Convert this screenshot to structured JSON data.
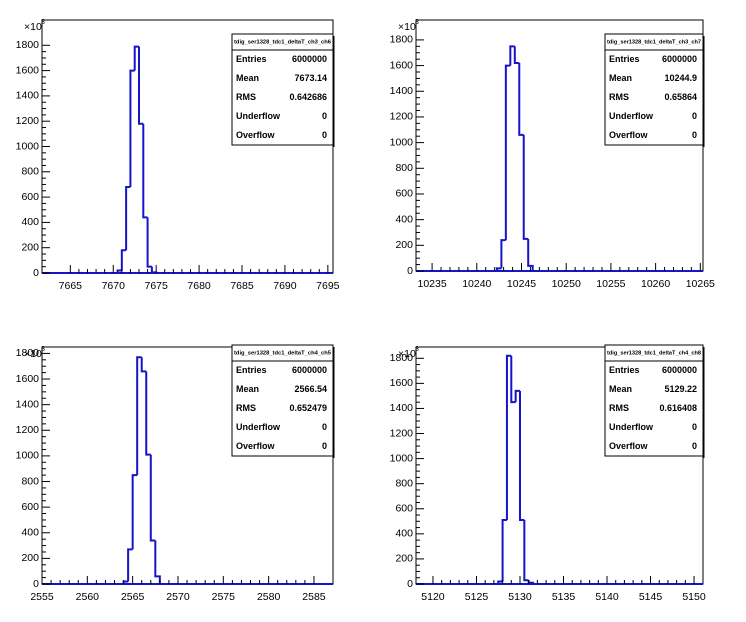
{
  "chart_data": [
    {
      "type": "histogram",
      "color": "#1414c8",
      "bins": [
        7670.5,
        7671,
        7671.5,
        7672,
        7672.5,
        7673,
        7673.5,
        7674,
        7674.5,
        7675
      ],
      "values": [
        20,
        180,
        680,
        1600,
        1790,
        1180,
        440,
        50,
        5
      ],
      "xlim": [
        7661.7,
        7695.6
      ],
      "ylim": [
        0,
        2000
      ],
      "xticks": [
        7665,
        7670,
        7675,
        7680,
        7685,
        7690,
        7695
      ],
      "yticks": [
        0,
        200,
        400,
        600,
        800,
        1000,
        1200,
        1400,
        1600,
        1800
      ],
      "y_multiplier": {
        "base": "×10",
        "exponent": "3"
      },
      "stats": {
        "title": "tdig_ser1328_tdc1_deltaT_ch3_ch6",
        "rows": [
          {
            "label": "Entries",
            "value": 6000000
          },
          {
            "label": "Mean",
            "value": 7673.14
          },
          {
            "label": "RMS",
            "value": 0.642686
          },
          {
            "label": "Underflow",
            "value": 0
          },
          {
            "label": "Overflow",
            "value": 0
          }
        ]
      }
    },
    {
      "type": "histogram",
      "color": "#1414c8",
      "bins": [
        10242.25,
        10242.75,
        10243.25,
        10243.75,
        10244.25,
        10244.75,
        10245.25,
        10245.75,
        10246.25
      ],
      "values": [
        20,
        240,
        1600,
        1750,
        1620,
        1060,
        250,
        40
      ],
      "xlim": [
        10233.2,
        10265.3
      ],
      "ylim": [
        0,
        1955
      ],
      "xticks": [
        10235,
        10240,
        10245,
        10250,
        10255,
        10260,
        10265
      ],
      "yticks": [
        0,
        200,
        400,
        600,
        800,
        1000,
        1200,
        1400,
        1600,
        1800
      ],
      "y_multiplier": {
        "base": "×10",
        "exponent": "3"
      },
      "stats": {
        "title": "tdig_ser1328_tdc1_deltaT_ch3_ch7",
        "rows": [
          {
            "label": "Entries",
            "value": 6000000
          },
          {
            "label": "Mean",
            "value": 10244.9
          },
          {
            "label": "RMS",
            "value": 0.65864
          },
          {
            "label": "Underflow",
            "value": 0
          },
          {
            "label": "Overflow",
            "value": 0
          }
        ]
      }
    },
    {
      "type": "histogram",
      "color": "#1414c8",
      "bins": [
        2564,
        2564.5,
        2565,
        2565.5,
        2566,
        2566.5,
        2567,
        2567.5,
        2568
      ],
      "values": [
        20,
        270,
        850,
        1770,
        1660,
        1010,
        340,
        60
      ],
      "xlim": [
        2555,
        2587.1
      ],
      "ylim": [
        0,
        1850
      ],
      "xticks": [
        2555,
        2560,
        2565,
        2570,
        2575,
        2580,
        2585
      ],
      "yticks": [
        0,
        200,
        400,
        600,
        800,
        1000,
        1200,
        1400,
        1600,
        1800
      ],
      "y_multiplier": {
        "base": "×10",
        "exponent": "3"
      },
      "stats": {
        "title": "tdig_ser1328_tdc1_deltaT_ch4_ch5",
        "rows": [
          {
            "label": "Entries",
            "value": 6000000
          },
          {
            "label": "Mean",
            "value": 2566.54
          },
          {
            "label": "RMS",
            "value": 0.652479
          },
          {
            "label": "Underflow",
            "value": 0
          },
          {
            "label": "Overflow",
            "value": 0
          }
        ]
      }
    },
    {
      "type": "histogram",
      "color": "#1414c8",
      "bins": [
        5127.5,
        5128,
        5128.5,
        5129,
        5129.5,
        5130,
        5130.5,
        5131,
        5131.5
      ],
      "values": [
        20,
        510,
        1820,
        1450,
        1540,
        510,
        30,
        10
      ],
      "xlim": [
        5118.05,
        5151.03
      ],
      "ylim": [
        0,
        1890
      ],
      "xticks": [
        5120,
        5125,
        5130,
        5135,
        5140,
        5145,
        5150
      ],
      "yticks": [
        0,
        200,
        400,
        600,
        800,
        1000,
        1200,
        1400,
        1600,
        1800
      ],
      "y_multiplier": {
        "base": "×10",
        "exponent": "3"
      },
      "stats": {
        "title": "tdig_ser1328_tdc1_deltaT_ch4_ch8",
        "rows": [
          {
            "label": "Entries",
            "value": 6000000
          },
          {
            "label": "Mean",
            "value": 5129.22
          },
          {
            "label": "RMS",
            "value": 0.616408
          },
          {
            "label": "Underflow",
            "value": 0
          },
          {
            "label": "Overflow",
            "value": 0
          }
        ]
      }
    }
  ]
}
